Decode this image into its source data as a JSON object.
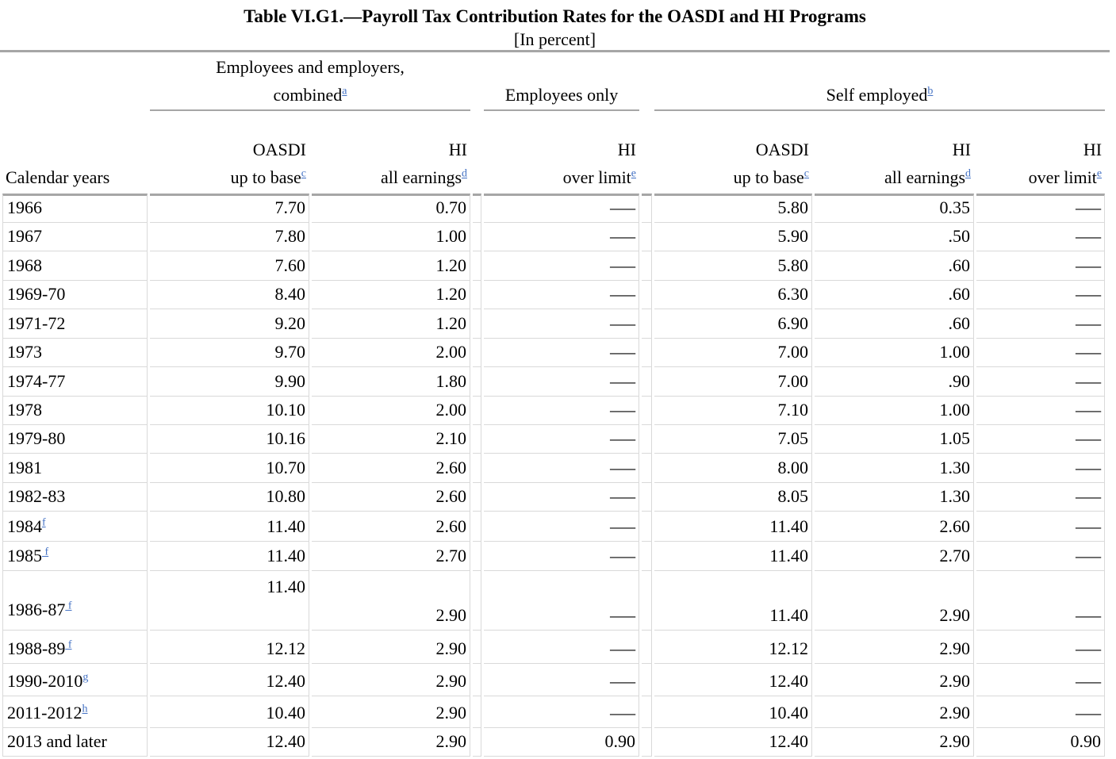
{
  "page": {
    "title": "Table VI.G1.—Payroll Tax Contribution Rates for the OASDI and HI Programs",
    "subtitle": "[In percent]"
  },
  "table": {
    "groups": [
      {
        "id": "combined",
        "line1": "Employees and employers,",
        "line2": "combined",
        "footnote": "a"
      },
      {
        "id": "employees-only",
        "label": "Employees only",
        "footnote": ""
      },
      {
        "id": "self-employed",
        "label": "Self employed",
        "footnote": "b"
      }
    ],
    "columns": [
      {
        "id": "calendar-years",
        "label": "Calendar years"
      },
      {
        "id": "oasdi-combined",
        "line1": "OASDI",
        "line2": "up to base",
        "footnote": "c"
      },
      {
        "id": "hi-all-combined",
        "line1": "HI",
        "line2": "all earnings",
        "footnote": "d"
      },
      {
        "id": "hi-over-employees",
        "line1": "HI",
        "line2": "over limit",
        "footnote": "e"
      },
      {
        "id": "oasdi-self",
        "line1": "OASDI",
        "line2": "up to base",
        "footnote": "c"
      },
      {
        "id": "hi-all-self",
        "line1": "HI",
        "line2": "all earnings",
        "footnote": "d"
      },
      {
        "id": "hi-over-self",
        "line1": "HI",
        "line2": "over limit",
        "footnote": "e"
      }
    ],
    "rows": [
      {
        "year": "1966",
        "footnote": "",
        "footnote_spaced": false,
        "values": [
          "7.70",
          "0.70",
          "—",
          "5.80",
          "0.35",
          "—"
        ]
      },
      {
        "year": "1967",
        "footnote": "",
        "footnote_spaced": false,
        "values": [
          "7.80",
          "1.00",
          "—",
          "5.90",
          ".50",
          "—"
        ]
      },
      {
        "year": "1968",
        "footnote": "",
        "footnote_spaced": false,
        "values": [
          "7.60",
          "1.20",
          "—",
          "5.80",
          ".60",
          "—"
        ]
      },
      {
        "year": "1969-70",
        "footnote": "",
        "footnote_spaced": false,
        "values": [
          "8.40",
          "1.20",
          "—",
          "6.30",
          ".60",
          "—"
        ]
      },
      {
        "year": "1971-72",
        "footnote": "",
        "footnote_spaced": false,
        "values": [
          "9.20",
          "1.20",
          "—",
          "6.90",
          ".60",
          "—"
        ]
      },
      {
        "year": "1973",
        "footnote": "",
        "footnote_spaced": false,
        "values": [
          "9.70",
          "2.00",
          "—",
          "7.00",
          "1.00",
          "—"
        ]
      },
      {
        "year": "1974-77",
        "footnote": "",
        "footnote_spaced": false,
        "values": [
          "9.90",
          "1.80",
          "—",
          "7.00",
          ".90",
          "—"
        ]
      },
      {
        "year": "1978",
        "footnote": "",
        "footnote_spaced": false,
        "values": [
          "10.10",
          "2.00",
          "—",
          "7.10",
          "1.00",
          "—"
        ]
      },
      {
        "year": "1979-80",
        "footnote": "",
        "footnote_spaced": false,
        "values": [
          "10.16",
          "2.10",
          "—",
          "7.05",
          "1.05",
          "—"
        ]
      },
      {
        "year": "1981",
        "footnote": "",
        "footnote_spaced": false,
        "values": [
          "10.70",
          "2.60",
          "—",
          "8.00",
          "1.30",
          "—"
        ]
      },
      {
        "year": "1982-83",
        "footnote": "",
        "footnote_spaced": false,
        "values": [
          "10.80",
          "2.60",
          "—",
          "8.05",
          "1.30",
          "—"
        ]
      },
      {
        "year": "1984",
        "footnote": "f",
        "footnote_spaced": false,
        "values": [
          "11.40",
          "2.60",
          "—",
          "11.40",
          "2.60",
          "—"
        ]
      },
      {
        "year": "1985",
        "footnote": "f",
        "footnote_spaced": true,
        "values": [
          "11.40",
          "2.70",
          "—",
          "11.40",
          "2.70",
          "—"
        ]
      },
      {
        "year": "1986-87",
        "footnote": "f",
        "footnote_spaced": true,
        "oasdi_value_on_upper_line": true,
        "values": [
          "11.40",
          "2.90",
          "—",
          "11.40",
          "2.90",
          "—"
        ]
      },
      {
        "year": "1988-89",
        "footnote": "f",
        "footnote_spaced": true,
        "values": [
          "12.12",
          "2.90",
          "—",
          "12.12",
          "2.90",
          "—"
        ]
      },
      {
        "year": "1990-2010",
        "footnote": "g",
        "footnote_spaced": false,
        "values": [
          "12.40",
          "2.90",
          "—",
          "12.40",
          "2.90",
          "—"
        ]
      },
      {
        "year": "2011-2012",
        "footnote": "h",
        "footnote_spaced": false,
        "values": [
          "10.40",
          "2.90",
          "—",
          "10.40",
          "2.90",
          "—"
        ]
      },
      {
        "year": "2013 and later",
        "footnote": "",
        "footnote_spaced": false,
        "values": [
          "12.40",
          "2.90",
          "0.90",
          "12.40",
          "2.90",
          "0.90"
        ]
      }
    ]
  },
  "colors": {
    "footnote_link_blue": "#4472c4",
    "heavy_rule_gray": "#a6a6a6",
    "light_border_gray": "#d9d9d9",
    "text": "#000000"
  }
}
